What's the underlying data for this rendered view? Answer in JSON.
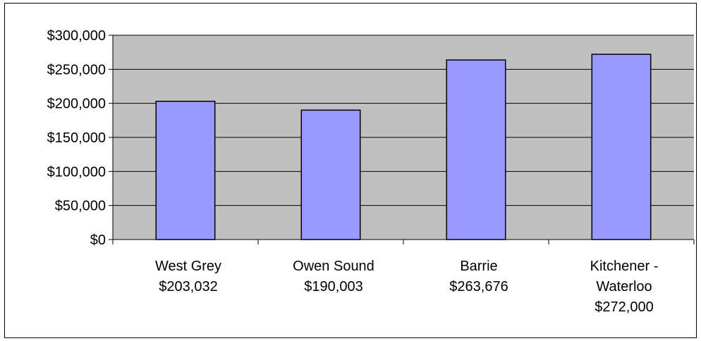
{
  "chart_data": {
    "type": "bar",
    "categories": [
      [
        "West Grey",
        "$203,032"
      ],
      [
        "Owen Sound",
        "$190,003"
      ],
      [
        "Barrie",
        "$263,676"
      ],
      [
        "Kitchener -",
        "Waterloo",
        "$272,000"
      ]
    ],
    "values": [
      203032,
      190003,
      263676,
      272000
    ],
    "ylim": [
      0,
      300000
    ],
    "y_ticks": [
      0,
      50000,
      100000,
      150000,
      200000,
      250000,
      300000
    ],
    "y_tick_labels": [
      "$0",
      "$50,000",
      "$100,000",
      "$150,000",
      "$200,000",
      "$250,000",
      "$300,000"
    ],
    "grid": true,
    "legend": "none",
    "colors": {
      "bar_fill": "#9999ff",
      "bar_stroke": "#000000",
      "plot_background": "#c0c0c0",
      "gridline": "#000000"
    }
  }
}
